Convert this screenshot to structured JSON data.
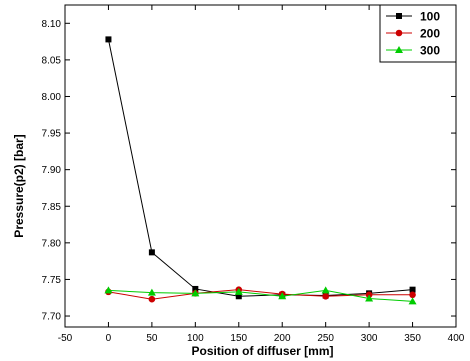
{
  "chart_data": {
    "type": "line",
    "title": "",
    "xlabel": "Position of diffuser [mm]",
    "ylabel": "Pressure(p2) [bar]",
    "xlim": [
      -50,
      400
    ],
    "ylim": [
      7.685,
      8.125
    ],
    "x_ticks": [
      -50,
      0,
      50,
      100,
      150,
      200,
      250,
      300,
      350,
      400
    ],
    "y_ticks": [
      7.7,
      7.75,
      7.8,
      7.85,
      7.9,
      7.95,
      8.0,
      8.05,
      8.1
    ],
    "x_tick_labels": [
      "-50",
      "0",
      "50",
      "100",
      "150",
      "200",
      "250",
      "300",
      "350",
      "400"
    ],
    "y_tick_labels": [
      "7.70",
      "7.75",
      "7.80",
      "7.85",
      "7.90",
      "7.95",
      "8.00",
      "8.05",
      "8.10"
    ],
    "x": [
      0,
      50,
      100,
      150,
      200,
      250,
      300,
      350
    ],
    "legend_position": "top-right",
    "grid": false,
    "series": [
      {
        "name": "100",
        "color": "#000000",
        "marker": "square",
        "values": [
          8.078,
          7.787,
          7.737,
          7.727,
          7.729,
          7.728,
          7.731,
          7.736
        ]
      },
      {
        "name": "200",
        "color": "#cc0000",
        "marker": "circle",
        "values": [
          7.733,
          7.723,
          7.731,
          7.736,
          7.73,
          7.727,
          7.729,
          7.729
        ]
      },
      {
        "name": "300",
        "color": "#00cc00",
        "marker": "triangle",
        "values": [
          7.735,
          7.732,
          7.731,
          7.733,
          7.727,
          7.735,
          7.724,
          7.72
        ]
      }
    ]
  }
}
